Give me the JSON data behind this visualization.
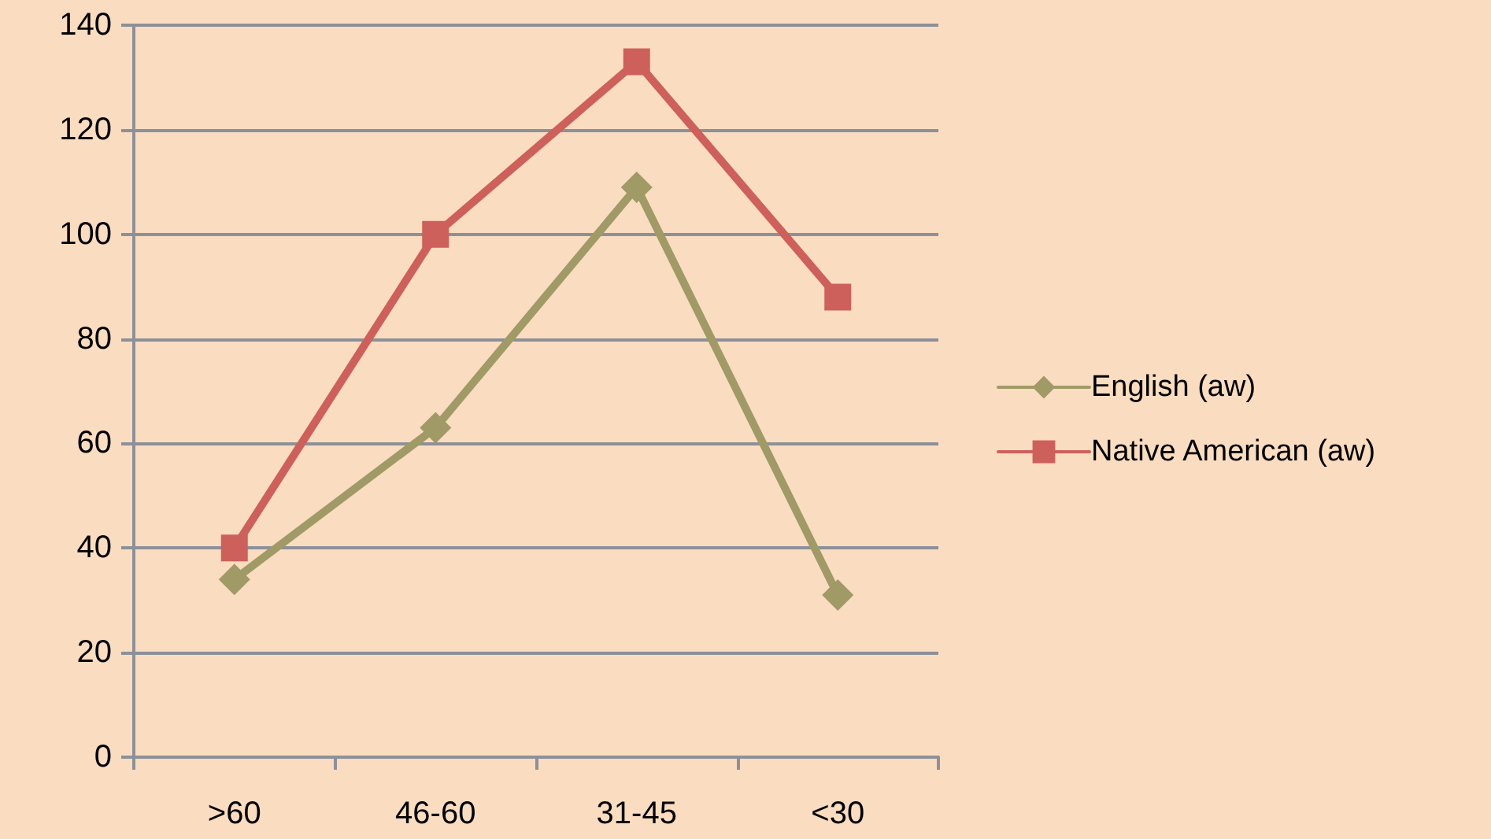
{
  "chart_data": {
    "type": "line",
    "categories": [
      ">60",
      "46-60",
      "31-45",
      "<30"
    ],
    "series": [
      {
        "name": "English (aw)",
        "color": "#a09a66",
        "marker": "diamond",
        "values": [
          34,
          63,
          109,
          31
        ]
      },
      {
        "name": "Native American (aw)",
        "color": "#cd605a",
        "marker": "square",
        "values": [
          40,
          100,
          133,
          88
        ]
      }
    ],
    "ylim": [
      0,
      140
    ],
    "yticks": [
      0,
      20,
      40,
      60,
      80,
      100,
      120,
      140
    ],
    "grid": "y",
    "legend": "right",
    "line_style": "solid"
  }
}
